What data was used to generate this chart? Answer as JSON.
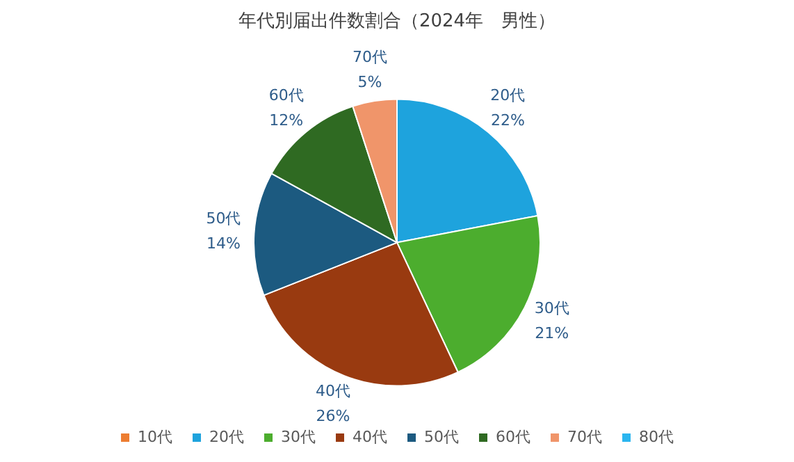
{
  "chart_data": {
    "type": "pie",
    "title": "年代別届出件数割合（2024年　男性）",
    "categories": [
      "10代",
      "20代",
      "30代",
      "40代",
      "50代",
      "60代",
      "70代",
      "80代"
    ],
    "values": [
      0,
      22,
      21,
      26,
      14,
      12,
      5,
      0
    ],
    "value_labels": [
      null,
      "22%",
      "21%",
      "26%",
      "14%",
      "12%",
      "5%",
      null
    ],
    "colors": [
      "#ed7d31",
      "#1ea3dd",
      "#4cad2e",
      "#993a10",
      "#1c5a80",
      "#2f6a22",
      "#f0956a",
      "#2bb5ef"
    ],
    "legend": "bottom"
  }
}
